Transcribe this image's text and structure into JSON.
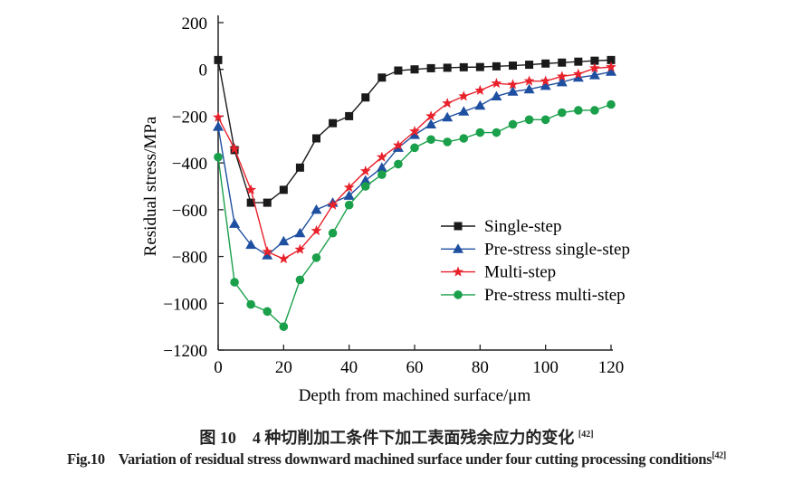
{
  "chart_data": {
    "type": "line",
    "xlabel": "Depth from machined surface/μm",
    "ylabel": "Residual stress/MPa",
    "xlim": [
      0,
      120
    ],
    "ylim": [
      -1200,
      200
    ],
    "xticks": [
      0,
      20,
      40,
      60,
      80,
      100,
      120
    ],
    "yticks": [
      200,
      0,
      -200,
      -400,
      -600,
      -800,
      -1000,
      -1200
    ],
    "grid": false,
    "legend_position": "center-right",
    "x": [
      0,
      5,
      10,
      15,
      20,
      25,
      30,
      35,
      40,
      45,
      50,
      55,
      60,
      65,
      70,
      75,
      80,
      85,
      90,
      95,
      100,
      105,
      110,
      115,
      120
    ],
    "series": [
      {
        "name": "Single-step",
        "marker": "square",
        "color": "#1a1a1a",
        "values": [
          40,
          -345,
          -570,
          -570,
          -515,
          -420,
          -295,
          -230,
          -200,
          -120,
          -35,
          -5,
          0,
          5,
          7,
          9,
          10,
          13,
          16,
          20,
          25,
          29,
          33,
          37,
          40
        ]
      },
      {
        "name": "Pre-stress single-step",
        "marker": "triangle",
        "color": "#1f4fa0",
        "values": [
          -245,
          -660,
          -750,
          -795,
          -735,
          -700,
          -600,
          -570,
          -540,
          -475,
          -420,
          -335,
          -280,
          -235,
          -205,
          -180,
          -155,
          -115,
          -95,
          -85,
          -70,
          -55,
          -35,
          -25,
          -10
        ]
      },
      {
        "name": "Multi-step",
        "marker": "star",
        "color": "#e8212b",
        "values": [
          -205,
          -340,
          -515,
          -780,
          -810,
          -770,
          -690,
          -580,
          -505,
          -435,
          -375,
          -325,
          -265,
          -200,
          -145,
          -115,
          -90,
          -60,
          -65,
          -50,
          -50,
          -30,
          -20,
          5,
          10
        ]
      },
      {
        "name": "Pre-stress multi-step",
        "marker": "circle",
        "color": "#1aa04a",
        "values": [
          -375,
          -910,
          -1005,
          -1035,
          -1100,
          -900,
          -805,
          -700,
          -580,
          -500,
          -450,
          -405,
          -335,
          -300,
          -310,
          -295,
          -270,
          -270,
          -235,
          -215,
          -215,
          -185,
          -175,
          -175,
          -150
        ]
      }
    ]
  },
  "caption": {
    "zh_label": "图 10",
    "zh_text": "4 种切削加工条件下加工表面残余应力的变化",
    "zh_ref": "[42]",
    "en_label": "Fig.10",
    "en_text": "Variation of residual stress downward machined surface under four cutting processing conditions",
    "en_ref": "[42]"
  }
}
